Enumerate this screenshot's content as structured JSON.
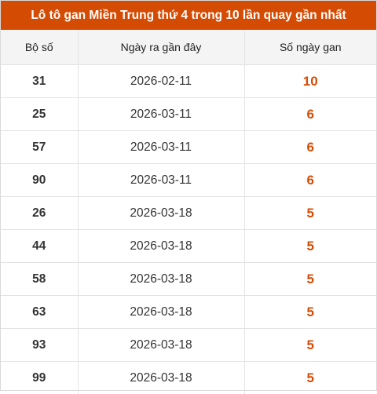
{
  "title": "Lô tô gan Miền Trung thứ 4 trong 10 lần quay gần nhất",
  "colors": {
    "header_bg": "#d44c04",
    "accent_value": "#d44c04"
  },
  "table": {
    "headers": [
      "Bộ số",
      "Ngày ra gần đây",
      "Số ngày gan"
    ],
    "rows": [
      [
        "31",
        "2026-02-11",
        "10"
      ],
      [
        "25",
        "2026-03-11",
        "6"
      ],
      [
        "57",
        "2026-03-11",
        "6"
      ],
      [
        "90",
        "2026-03-11",
        "6"
      ],
      [
        "26",
        "2026-03-18",
        "5"
      ],
      [
        "44",
        "2026-03-18",
        "5"
      ],
      [
        "58",
        "2026-03-18",
        "5"
      ],
      [
        "63",
        "2026-03-18",
        "5"
      ],
      [
        "93",
        "2026-03-18",
        "5"
      ],
      [
        "99",
        "2026-03-18",
        "5"
      ]
    ]
  }
}
